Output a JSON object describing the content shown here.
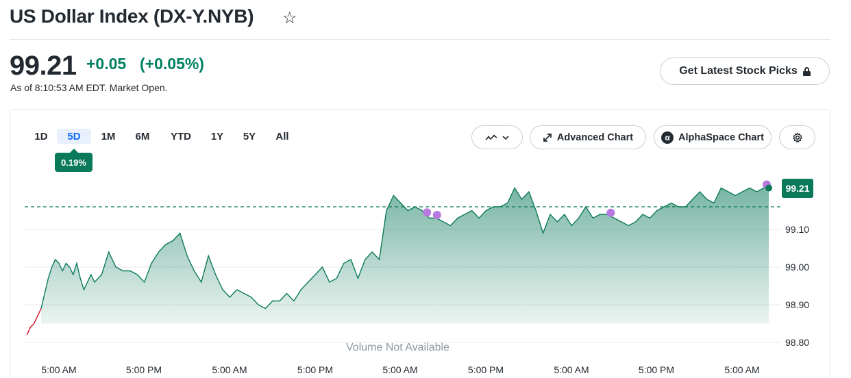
{
  "header": {
    "title": "US Dollar Index (DX-Y.NYB)",
    "star_icon": "star-outline-icon"
  },
  "quote": {
    "price": "99.21",
    "change": "+0.05",
    "change_percent": "(+0.05%)",
    "as_of": "As of 8:10:53 AM EDT. Market Open.",
    "positive_color": "#008060"
  },
  "picks_button": {
    "label": "Get Latest Stock Picks",
    "icon": "lock-icon"
  },
  "chart_toolbar": {
    "ranges": [
      "1D",
      "5D",
      "1M",
      "6M",
      "YTD",
      "1Y",
      "5Y",
      "All"
    ],
    "active_range": "5D",
    "range_change_badge": "0.19%",
    "chart_type_icon": "chart-type-icon",
    "advanced_chart_label": "Advanced Chart",
    "alphaspace_label": "AlphaSpace Chart",
    "settings_icon": "gear-icon"
  },
  "chart_data": {
    "type": "area",
    "title": "",
    "xlabel": "",
    "ylabel": "",
    "y_ticks": [
      "99.10",
      "99.00",
      "98.90",
      "98.80"
    ],
    "ylim": [
      98.8,
      99.23
    ],
    "x_ticks": [
      "5:00 AM",
      "5:00 PM",
      "5:00 AM",
      "5:00 PM",
      "5:00 AM",
      "5:00 PM",
      "5:00 AM",
      "5:00 PM",
      "5:00 AM"
    ],
    "x_hours": [
      0,
      12,
      24,
      36,
      48,
      60,
      72,
      84,
      96
    ],
    "x_unit": "hours after first 5:00 AM tick",
    "previous_close": 99.16,
    "last_value": 99.21,
    "last_value_label": "99.21",
    "grid": true,
    "fill_color": "#0b7a5a",
    "line_color": "#0b7a5a",
    "pre_series_color": "#d0021b",
    "volume_text": "Volume Not Available",
    "series": [
      {
        "x": [
          -4.5,
          -4.0,
          -3.5,
          -3.0,
          -2.5,
          -2.0,
          -1.5,
          -1.0,
          -0.5,
          0.0,
          0.5,
          1.0,
          1.5,
          2.0,
          2.5,
          3.0,
          3.5,
          4.0,
          4.5,
          5.0,
          6.0,
          7.0,
          8.0,
          9.0,
          10.0,
          11.0,
          12.0,
          13.0,
          14.0,
          15.0,
          16.0,
          17.0,
          18.0,
          19.0,
          20.0,
          21.0,
          22.0,
          23.0,
          24.0,
          25.0,
          26.0,
          27.0,
          28.0,
          29.0,
          30.0,
          31.0,
          32.0,
          33.0,
          34.0,
          35.0,
          36.0,
          37.0,
          38.0,
          39.0,
          40.0,
          41.0,
          42.0,
          43.0,
          44.0,
          45.0,
          46.0,
          47.0,
          48.0,
          49.0,
          50.0,
          51.0,
          52.0,
          53.0,
          54.0,
          55.0,
          56.0,
          57.0,
          58.0,
          59.0,
          60.0,
          61.0,
          62.0,
          63.0,
          64.0,
          65.0,
          66.0,
          67.0,
          68.0,
          69.0,
          70.0,
          71.0,
          72.0,
          73.0,
          74.0,
          75.0,
          76.0,
          77.0,
          78.0,
          79.0,
          80.0,
          81.0,
          82.0,
          83.0,
          84.0,
          85.0,
          86.0,
          87.0,
          88.0,
          89.0,
          90.0,
          91.0,
          92.0,
          93.0,
          94.0,
          95.0,
          96.0,
          97.0,
          98.0,
          99.0,
          99.7
        ],
        "y": [
          98.82,
          98.84,
          98.85,
          98.87,
          98.89,
          98.93,
          98.97,
          99.0,
          99.02,
          99.01,
          98.99,
          99.01,
          99.0,
          98.98,
          99.01,
          98.97,
          98.94,
          98.96,
          98.98,
          98.96,
          98.98,
          99.04,
          99.0,
          98.99,
          98.99,
          98.98,
          98.96,
          99.01,
          99.04,
          99.06,
          99.07,
          99.09,
          99.03,
          98.99,
          98.96,
          99.03,
          98.98,
          98.94,
          98.92,
          98.94,
          98.93,
          98.92,
          98.9,
          98.89,
          98.91,
          98.91,
          98.93,
          98.91,
          98.94,
          98.96,
          98.98,
          99.0,
          98.96,
          98.97,
          99.01,
          99.02,
          98.97,
          99.02,
          99.04,
          99.02,
          99.15,
          99.19,
          99.17,
          99.15,
          99.16,
          99.15,
          99.13,
          99.13,
          99.12,
          99.11,
          99.13,
          99.14,
          99.15,
          99.13,
          99.15,
          99.16,
          99.16,
          99.17,
          99.21,
          99.18,
          99.2,
          99.15,
          99.09,
          99.14,
          99.12,
          99.14,
          99.11,
          99.13,
          99.16,
          99.13,
          99.14,
          99.14,
          99.13,
          99.12,
          99.11,
          99.12,
          99.14,
          99.13,
          99.15,
          99.16,
          99.17,
          99.16,
          99.16,
          99.18,
          99.2,
          99.18,
          99.17,
          99.21,
          99.2,
          99.19,
          99.2,
          99.21,
          99.2,
          99.21,
          99.21
        ]
      }
    ],
    "event_markers_hours": [
      51.7,
      53.1,
      77.5,
      99.4
    ],
    "event_marker_color": "#b779e0"
  }
}
